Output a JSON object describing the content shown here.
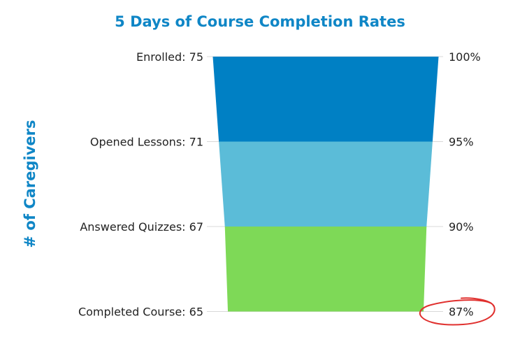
{
  "chart_data": {
    "type": "funnel",
    "title": "5 Days of Course Completion Rates",
    "ylabel": "# of Caregivers",
    "stages": [
      {
        "label": "Enrolled: 75",
        "value": 75,
        "percent_label": "100%"
      },
      {
        "label": "Opened Lessons: 71",
        "value": 71,
        "percent_label": "95%"
      },
      {
        "label": "Answered Quizzes: 67",
        "value": 67,
        "percent_label": "90%"
      },
      {
        "label": "Completed Course: 65",
        "value": 65,
        "percent_label": "87%"
      }
    ],
    "colors": [
      "#0080c4",
      "#5bbcd8",
      "#7ed957"
    ],
    "highlight_color": "#e0302e",
    "highlighted_stage": 3
  }
}
